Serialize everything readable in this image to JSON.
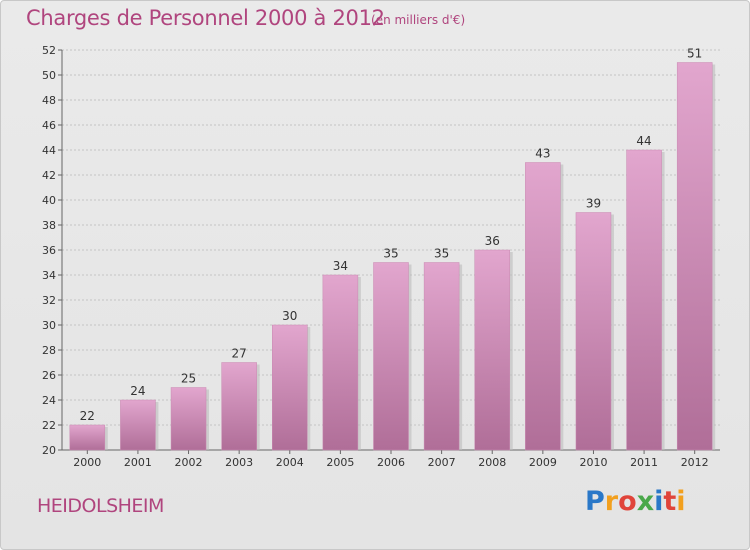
{
  "title": "Charges de Personnel 2000 à 2012",
  "subtitle": "(en milliers d'€)",
  "commune": "HEIDOLSHEIM",
  "logo": "Proxiti",
  "colors": {
    "bar_top": "#e2a6ce",
    "bar_bottom": "#b06e98",
    "text_accent": "#b0457e"
  },
  "chart_data": {
    "type": "bar",
    "title": "Charges de Personnel 2000 à 2012",
    "subtitle": "(en milliers d'€)",
    "xlabel": "",
    "ylabel": "",
    "categories": [
      "2000",
      "2001",
      "2002",
      "2003",
      "2004",
      "2005",
      "2006",
      "2007",
      "2008",
      "2009",
      "2010",
      "2011",
      "2012"
    ],
    "values": [
      22,
      24,
      25,
      27,
      30,
      34,
      35,
      35,
      36,
      43,
      39,
      44,
      51
    ],
    "ylim": [
      20,
      52
    ],
    "yticks": [
      20,
      22,
      24,
      26,
      28,
      30,
      32,
      34,
      36,
      38,
      40,
      42,
      44,
      46,
      48,
      50,
      52
    ],
    "grid": "horizontal dashed",
    "legend": "none"
  }
}
